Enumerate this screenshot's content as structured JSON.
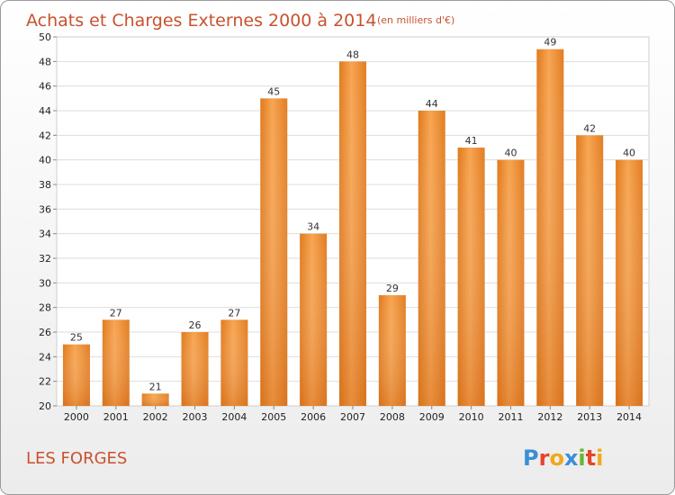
{
  "chart_data": {
    "type": "bar",
    "title": "Achats et Charges Externes 2000 à 2014",
    "subtitle": "(en milliers d'€)",
    "categories": [
      "2000",
      "2001",
      "2002",
      "2003",
      "2004",
      "2005",
      "2006",
      "2007",
      "2008",
      "2009",
      "2010",
      "2011",
      "2012",
      "2013",
      "2014"
    ],
    "values": [
      25,
      27,
      21,
      26,
      27,
      45,
      34,
      48,
      29,
      44,
      41,
      40,
      49,
      42,
      40
    ],
    "ylim": [
      20,
      50
    ],
    "yticks": [
      20,
      22,
      24,
      26,
      28,
      30,
      32,
      34,
      36,
      38,
      40,
      42,
      44,
      46,
      48,
      50
    ],
    "grid": true,
    "bar_color": "#f0922e"
  },
  "place_name": "LES FORGES",
  "logo": {
    "letters": [
      "P",
      "r",
      "o",
      "x",
      "i",
      "t",
      "i"
    ],
    "colors": [
      "#3a8fd6",
      "#e8432b",
      "#f0a81c",
      "#3a8fd6",
      "#6ab42d",
      "#e8432b",
      "#f0a81c"
    ]
  }
}
